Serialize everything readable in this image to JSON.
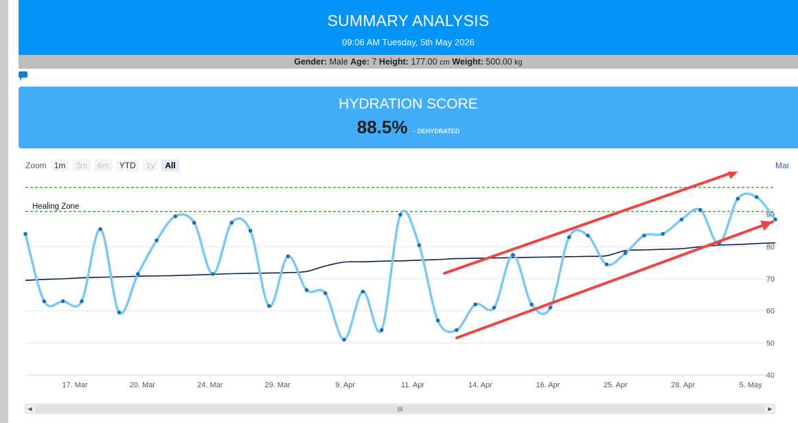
{
  "header": {
    "title": "SUMMARY ANALYSIS",
    "datetime": "09:06 AM Tuesday, 5th May 2026"
  },
  "profile": {
    "gender_label": "Gender:",
    "gender": "Male",
    "age_label": "Age:",
    "age": "7",
    "height_label": "Height:",
    "height": "177.00",
    "height_unit": "cm",
    "weight_label": "Weight:",
    "weight": "500.00",
    "weight_unit": "kg"
  },
  "score": {
    "title": "HYDRATION SCORE",
    "value": "88.5%",
    "status": "- DEHYDRATED"
  },
  "zoom": {
    "label": "Zoom",
    "buttons": [
      {
        "label": "1m",
        "state": "normal"
      },
      {
        "label": "3m",
        "state": "disabled"
      },
      {
        "label": "6m",
        "state": "disabled"
      },
      {
        "label": "YTD",
        "state": "normal"
      },
      {
        "label": "1y",
        "state": "disabled"
      },
      {
        "label": "All",
        "state": "selected"
      }
    ]
  },
  "range_label": "Mar",
  "scrollbar": {
    "grip": "III",
    "left_arrow": "◀",
    "right_arrow": "▶"
  },
  "colors": {
    "header": "#0494f8",
    "score_box": "#44adf9",
    "series_line": "#7cc8ee",
    "series_point": "#1a6fb5",
    "trend_line": "#0e1e5a",
    "zone_line": "#1f8a1f",
    "annotation_arrow": "#ef4444"
  },
  "chart_data": {
    "type": "line",
    "x_tick_labels": [
      "17. Mar",
      "20. Mar",
      "24. Mar",
      "29. Mar",
      "9. Apr",
      "11. Apr",
      "14. Apr",
      "16. Apr",
      "25. Apr",
      "28. Apr",
      "5. May"
    ],
    "y_ticks": [
      40,
      50,
      60,
      70,
      80,
      90
    ],
    "ylim": [
      40,
      100
    ],
    "plot_bands": [
      {
        "label": "Healing Zone",
        "from": 91,
        "to": 98.5
      }
    ],
    "series": [
      {
        "values": [
          84,
          63,
          63,
          63,
          85.5,
          59.5,
          71.5,
          82,
          89.5,
          87.5,
          71.5,
          87.5,
          85,
          61.5,
          77,
          66.5,
          65.5,
          51,
          66,
          54,
          90,
          80.5,
          57,
          54,
          62,
          61,
          77.5,
          62,
          61,
          83,
          83.5,
          74.5,
          78,
          83.5,
          84,
          88.5,
          91.5,
          81,
          95,
          95.5,
          88.5
        ]
      },
      {
        "values": [
          69.5,
          69.8,
          70,
          70.3,
          70.5,
          70.6,
          70.8,
          70.9,
          71,
          71.2,
          71.4,
          71.6,
          71.7,
          71.8,
          71.9,
          72.3,
          74,
          75.2,
          75.3,
          75.5,
          75.6,
          75.8,
          76,
          76.3,
          76.4,
          76.5,
          76.6,
          76.7,
          76.8,
          76.9,
          77,
          77.2,
          78.8,
          79,
          79.2,
          79.4,
          80,
          80.5,
          80.7,
          81,
          81.2
        ]
      }
    ],
    "legend": "none",
    "grid": true
  }
}
